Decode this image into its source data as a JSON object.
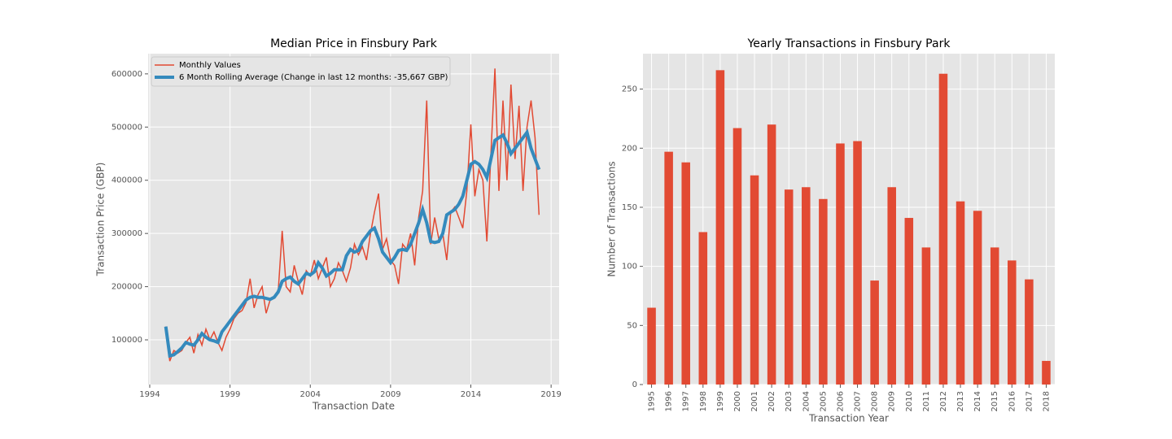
{
  "chart_data": [
    {
      "type": "line",
      "title": "Median Price in Finsbury Park",
      "x_label": "Transaction Date",
      "y_label": "Transaction Price (GBP)",
      "x": [
        1995.0,
        1995.25,
        1995.5,
        1995.75,
        1996.0,
        1996.25,
        1996.5,
        1996.75,
        1997.0,
        1997.25,
        1997.5,
        1997.75,
        1998.0,
        1998.25,
        1998.5,
        1998.75,
        1999.0,
        1999.25,
        1999.5,
        1999.75,
        2000.0,
        2000.25,
        2000.5,
        2000.75,
        2001.0,
        2001.25,
        2001.5,
        2001.75,
        2002.0,
        2002.25,
        2002.5,
        2002.75,
        2003.0,
        2003.25,
        2003.5,
        2003.75,
        2004.0,
        2004.25,
        2004.5,
        2004.75,
        2005.0,
        2005.25,
        2005.5,
        2005.75,
        2006.0,
        2006.25,
        2006.5,
        2006.75,
        2007.0,
        2007.25,
        2007.5,
        2007.75,
        2008.0,
        2008.25,
        2008.5,
        2008.75,
        2009.0,
        2009.25,
        2009.5,
        2009.75,
        2010.0,
        2010.25,
        2010.5,
        2010.75,
        2011.0,
        2011.25,
        2011.5,
        2011.75,
        2012.0,
        2012.25,
        2012.5,
        2012.75,
        2013.0,
        2013.25,
        2013.5,
        2013.75,
        2014.0,
        2014.25,
        2014.5,
        2014.75,
        2015.0,
        2015.25,
        2015.5,
        2015.75,
        2016.0,
        2016.25,
        2016.5,
        2016.75,
        2017.0,
        2017.25,
        2017.5,
        2017.75,
        2018.0,
        2018.25
      ],
      "series": [
        {
          "name": "Monthly Values",
          "color": "#E24A33",
          "values": [
            125000,
            60000,
            80000,
            75000,
            80000,
            95000,
            105000,
            75000,
            110000,
            90000,
            120000,
            100000,
            115000,
            95000,
            80000,
            105000,
            120000,
            140000,
            150000,
            155000,
            170000,
            215000,
            160000,
            185000,
            200000,
            150000,
            175000,
            180000,
            190000,
            305000,
            200000,
            190000,
            240000,
            210000,
            185000,
            230000,
            220000,
            250000,
            215000,
            235000,
            255000,
            200000,
            215000,
            245000,
            230000,
            210000,
            235000,
            280000,
            260000,
            275000,
            250000,
            300000,
            340000,
            375000,
            270000,
            290000,
            250000,
            240000,
            205000,
            280000,
            270000,
            300000,
            240000,
            330000,
            380000,
            550000,
            280000,
            330000,
            290000,
            300000,
            250000,
            340000,
            350000,
            330000,
            310000,
            380000,
            505000,
            370000,
            420000,
            400000,
            285000,
            450000,
            610000,
            380000,
            550000,
            400000,
            580000,
            440000,
            540000,
            380000,
            500000,
            550000,
            480000,
            335000
          ]
        },
        {
          "name": "6 Month Rolling Average (Change in last 12 months: -35,667 GBP)",
          "color": "#348ABD",
          "values": [
            125000,
            70000,
            72000,
            78000,
            85000,
            95000,
            92000,
            90000,
            100000,
            112000,
            105000,
            100000,
            98000,
            95000,
            115000,
            125000,
            135000,
            145000,
            155000,
            165000,
            175000,
            180000,
            182000,
            180000,
            180000,
            178000,
            176000,
            180000,
            190000,
            210000,
            215000,
            218000,
            210000,
            205000,
            215000,
            225000,
            222000,
            228000,
            245000,
            235000,
            220000,
            225000,
            232000,
            232000,
            232000,
            258000,
            270000,
            265000,
            268000,
            285000,
            295000,
            305000,
            310000,
            290000,
            265000,
            255000,
            245000,
            255000,
            268000,
            270000,
            268000,
            280000,
            300000,
            320000,
            345000,
            320000,
            285000,
            283000,
            285000,
            300000,
            335000,
            340000,
            345000,
            355000,
            370000,
            400000,
            430000,
            435000,
            430000,
            420000,
            405000,
            440000,
            475000,
            480000,
            485000,
            470000,
            450000,
            460000,
            470000,
            480000,
            490000,
            460000,
            440000,
            420000
          ]
        }
      ],
      "xlim": [
        1993.9,
        2019.5
      ],
      "xticks": [
        1994,
        1999,
        2004,
        2009,
        2014,
        2019
      ],
      "ylim": [
        16000,
        638000
      ],
      "yticks": [
        100000,
        200000,
        300000,
        400000,
        500000,
        600000
      ],
      "grid": true,
      "legend": "upper-left"
    },
    {
      "type": "bar",
      "title": "Yearly Transactions in Finsbury Park",
      "x_label": "Transaction Year",
      "y_label": "Number of Transactions",
      "categories": [
        "1995",
        "1996",
        "1997",
        "1998",
        "1999",
        "2000",
        "2001",
        "2002",
        "2003",
        "2004",
        "2005",
        "2006",
        "2007",
        "2008",
        "2009",
        "2010",
        "2011",
        "2012",
        "2013",
        "2014",
        "2015",
        "2016",
        "2017",
        "2018"
      ],
      "values": [
        65,
        197,
        188,
        129,
        266,
        217,
        177,
        220,
        165,
        167,
        157,
        204,
        206,
        88,
        167,
        141,
        116,
        263,
        155,
        147,
        116,
        105,
        89,
        20
      ],
      "color": "#E24A33",
      "ylim": [
        0,
        280
      ],
      "yticks": [
        0,
        50,
        100,
        150,
        200,
        250
      ],
      "grid": true
    }
  ]
}
